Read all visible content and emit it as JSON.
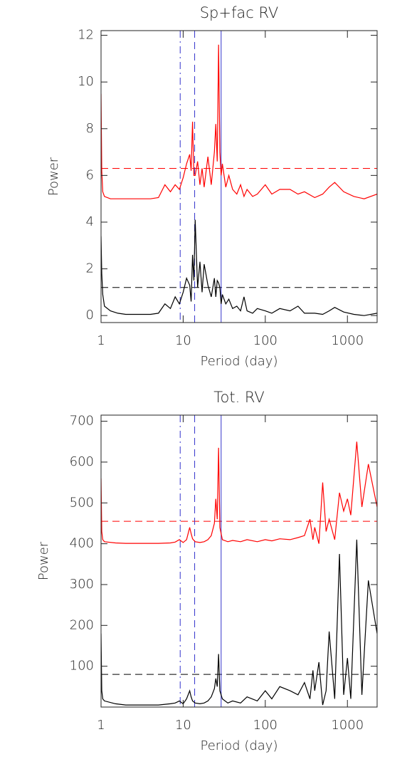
{
  "chart_data": [
    {
      "type": "line",
      "title": "Sp+fac RV",
      "xlabel": "Period (day)",
      "ylabel": "Power",
      "xscale": "log",
      "xlim": [
        1,
        2300
      ],
      "ylim": [
        -0.3,
        12.2
      ],
      "xticks": [
        1,
        10,
        100,
        1000
      ],
      "yticks": [
        0,
        2,
        4,
        6,
        8,
        10,
        12
      ],
      "x": [
        1,
        1.02,
        1.05,
        1.1,
        1.3,
        1.6,
        2,
        3,
        4,
        5,
        6,
        7,
        8,
        9,
        10,
        11,
        12,
        12.5,
        13,
        13.5,
        14,
        15,
        16,
        17,
        18,
        20,
        22,
        24,
        25,
        26,
        27,
        28,
        29,
        30,
        33,
        36,
        40,
        45,
        50,
        55,
        60,
        70,
        80,
        100,
        120,
        150,
        200,
        250,
        300,
        400,
        500,
        600,
        700,
        900,
        1200,
        1600,
        2300
      ],
      "series": [
        {
          "color": "#ff0000",
          "values": [
            9.5,
            6.2,
            5.3,
            5.1,
            5.0,
            5.0,
            5.0,
            5.0,
            5.0,
            5.05,
            5.6,
            5.3,
            5.6,
            5.4,
            5.9,
            6.5,
            6.9,
            6.2,
            8.3,
            6.0,
            6.0,
            6.6,
            5.6,
            6.3,
            5.5,
            6.8,
            5.6,
            7.0,
            8.2,
            6.6,
            11.6,
            7.0,
            6.0,
            6.5,
            5.5,
            6.0,
            5.4,
            5.2,
            5.6,
            5.1,
            5.4,
            5.1,
            5.2,
            5.6,
            5.2,
            5.4,
            5.4,
            5.2,
            5.3,
            5.05,
            5.2,
            5.5,
            5.7,
            5.3,
            5.1,
            5.0,
            5.2
          ]
        },
        {
          "color": "#000000",
          "values": [
            3.4,
            1.8,
            0.9,
            0.4,
            0.2,
            0.1,
            0.05,
            0.05,
            0.05,
            0.1,
            0.5,
            0.3,
            0.8,
            0.5,
            1.0,
            1.6,
            1.3,
            0.6,
            2.6,
            1.5,
            4.1,
            1.2,
            2.3,
            1.0,
            2.2,
            1.3,
            0.8,
            1.6,
            0.8,
            1.5,
            1.4,
            1.2,
            0.5,
            0.9,
            0.5,
            0.7,
            0.3,
            0.4,
            0.2,
            0.8,
            0.2,
            0.1,
            0.3,
            0.2,
            0.1,
            0.3,
            0.2,
            0.4,
            0.1,
            0.1,
            0.05,
            0.2,
            0.35,
            0.15,
            0.05,
            0.0,
            0.1
          ]
        }
      ],
      "hlines": [
        {
          "value": 6.3,
          "color": "#ff0000",
          "style": "dashed"
        },
        {
          "value": 1.2,
          "color": "#000000",
          "style": "dashed"
        }
      ],
      "vlines": [
        {
          "value": 9.2,
          "color": "#3333cc",
          "style": "dashdot"
        },
        {
          "value": 13.8,
          "color": "#3333cc",
          "style": "dashed"
        },
        {
          "value": 29,
          "color": "#3333cc",
          "style": "solid"
        }
      ]
    },
    {
      "type": "line",
      "title": "Tot. RV",
      "xlabel": "Period (day)",
      "ylabel": "Power",
      "xscale": "log",
      "xlim": [
        1,
        2300
      ],
      "ylim": [
        0,
        715
      ],
      "xticks": [
        1,
        10,
        100,
        1000
      ],
      "yticks": [
        100,
        200,
        300,
        400,
        500,
        600,
        700
      ],
      "x": [
        1,
        1.02,
        1.05,
        1.1,
        1.5,
        2,
        3,
        5,
        7,
        8,
        9,
        10,
        11,
        12,
        12.5,
        13,
        14,
        16,
        18,
        20,
        22,
        24,
        25,
        26,
        27,
        28,
        30,
        35,
        40,
        50,
        60,
        80,
        100,
        120,
        150,
        200,
        250,
        300,
        350,
        380,
        400,
        450,
        500,
        550,
        600,
        700,
        800,
        900,
        1000,
        1100,
        1300,
        1500,
        1800,
        2300
      ],
      "series": [
        {
          "color": "#ff0000",
          "values": [
            560,
            430,
            410,
            405,
            402,
            401,
            401,
            401,
            402,
            404,
            410,
            403,
            410,
            440,
            425,
            412,
            405,
            403,
            405,
            410,
            420,
            450,
            510,
            460,
            635,
            440,
            410,
            405,
            408,
            405,
            410,
            405,
            410,
            407,
            412,
            410,
            415,
            420,
            460,
            410,
            440,
            400,
            550,
            430,
            460,
            410,
            525,
            480,
            510,
            470,
            650,
            490,
            595,
            490
          ]
        },
        {
          "color": "#000000",
          "values": [
            180,
            40,
            20,
            15,
            8,
            5,
            5,
            5,
            8,
            10,
            15,
            8,
            20,
            40,
            25,
            15,
            10,
            8,
            10,
            15,
            25,
            45,
            70,
            50,
            130,
            40,
            20,
            10,
            15,
            10,
            25,
            15,
            40,
            20,
            50,
            40,
            30,
            60,
            20,
            90,
            40,
            110,
            5,
            40,
            185,
            20,
            375,
            30,
            120,
            20,
            410,
            30,
            310,
            180
          ]
        }
      ],
      "hlines": [
        {
          "value": 455,
          "color": "#ff0000",
          "style": "dashed"
        },
        {
          "value": 80,
          "color": "#000000",
          "style": "dashed"
        }
      ],
      "vlines": [
        {
          "value": 9.2,
          "color": "#3333cc",
          "style": "dashdot"
        },
        {
          "value": 13.8,
          "color": "#3333cc",
          "style": "dashed"
        },
        {
          "value": 29,
          "color": "#3333cc",
          "style": "solid"
        }
      ]
    }
  ]
}
